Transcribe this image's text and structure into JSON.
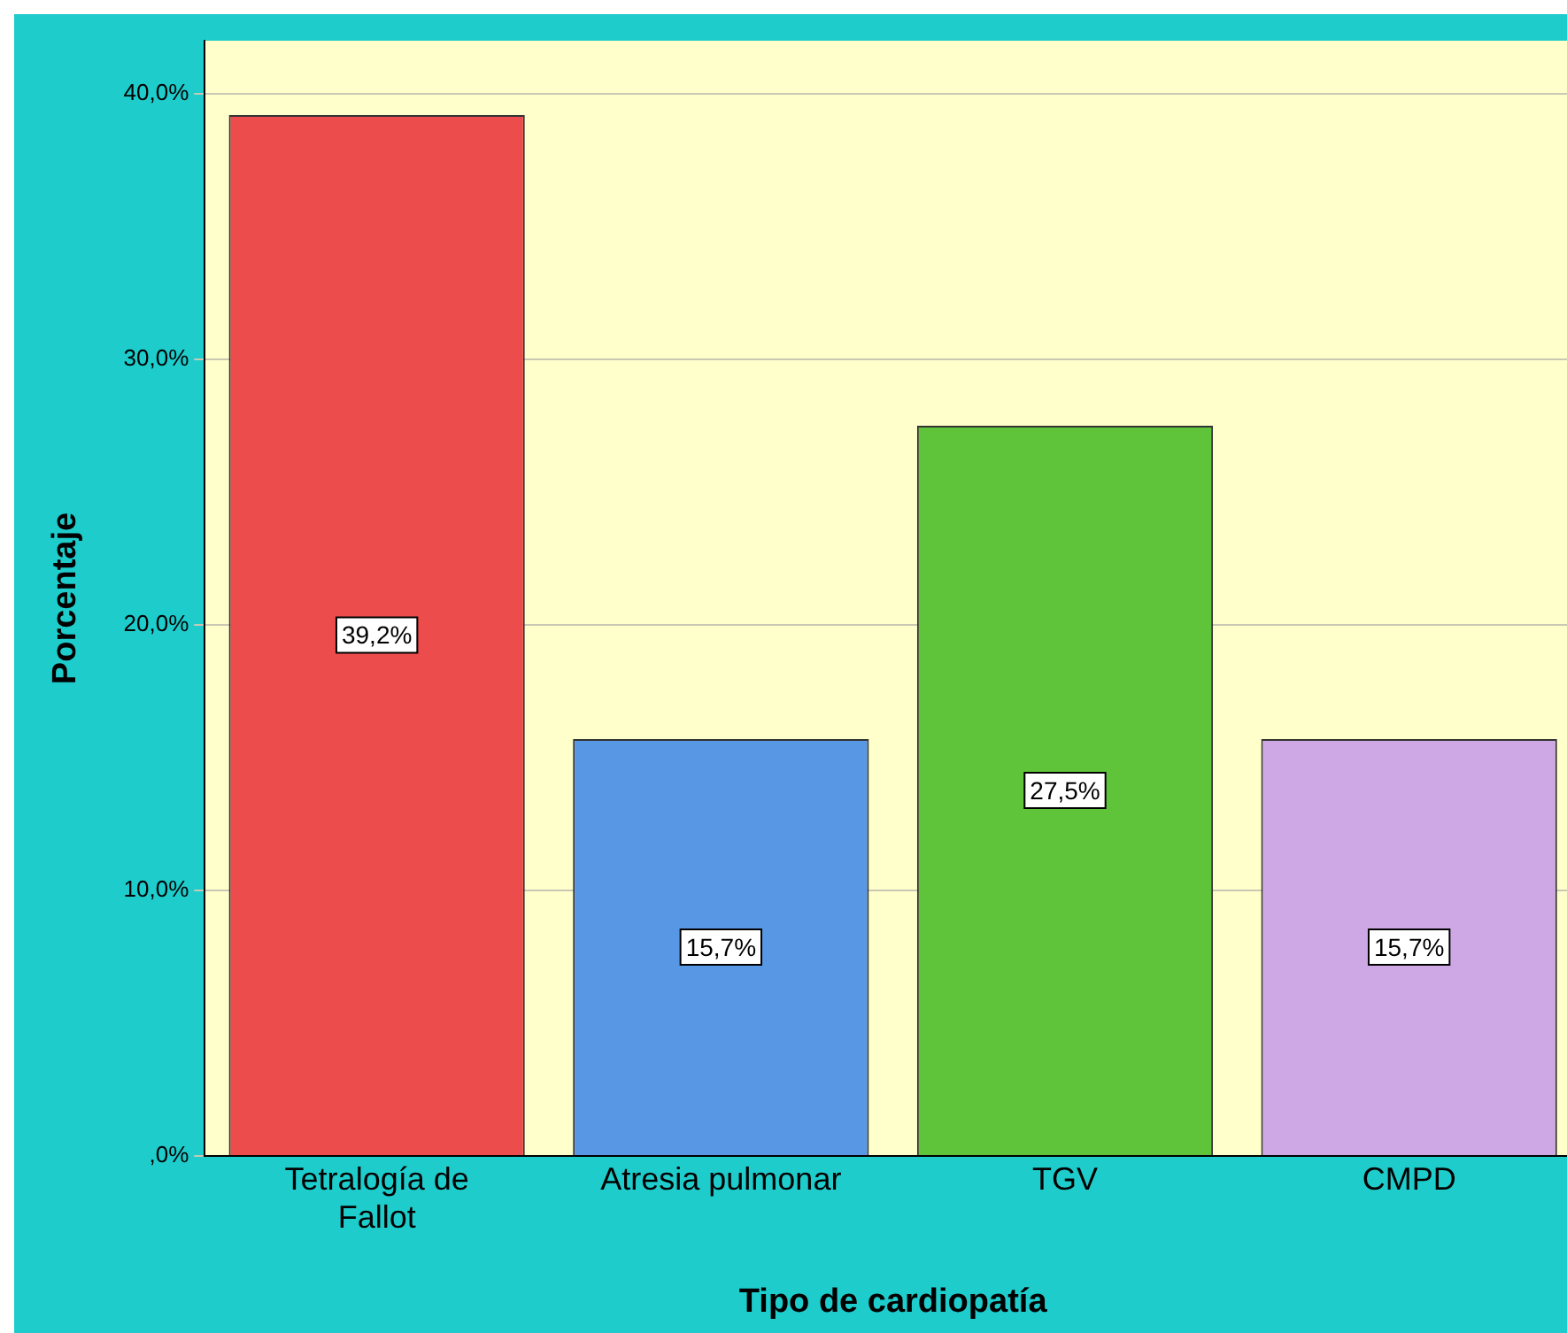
{
  "chart_data": {
    "type": "bar",
    "xlabel": "Tipo de cardiopatía",
    "ylabel": "Porcentaje",
    "categories": [
      "Tetralogía de Fallot",
      "Atresia pulmonar",
      "TGV",
      "CMPD"
    ],
    "values": [
      39.2,
      15.7,
      27.5,
      15.7
    ],
    "colors": [
      "#ed4c4c",
      "#5897e3",
      "#5fc43a",
      "#cea8e4"
    ],
    "value_labels": [
      "39,2%",
      "15,7%",
      "27,5%",
      "15,7%"
    ],
    "ylim": [
      0,
      42
    ],
    "yticks": [
      {
        "value": 0,
        "label": ",0%"
      },
      {
        "value": 10,
        "label": "10,0%"
      },
      {
        "value": 20,
        "label": "20,0%"
      },
      {
        "value": 30,
        "label": "30,0%"
      },
      {
        "value": 40,
        "label": "40,0%"
      }
    ],
    "grid": "y",
    "legend": false
  }
}
